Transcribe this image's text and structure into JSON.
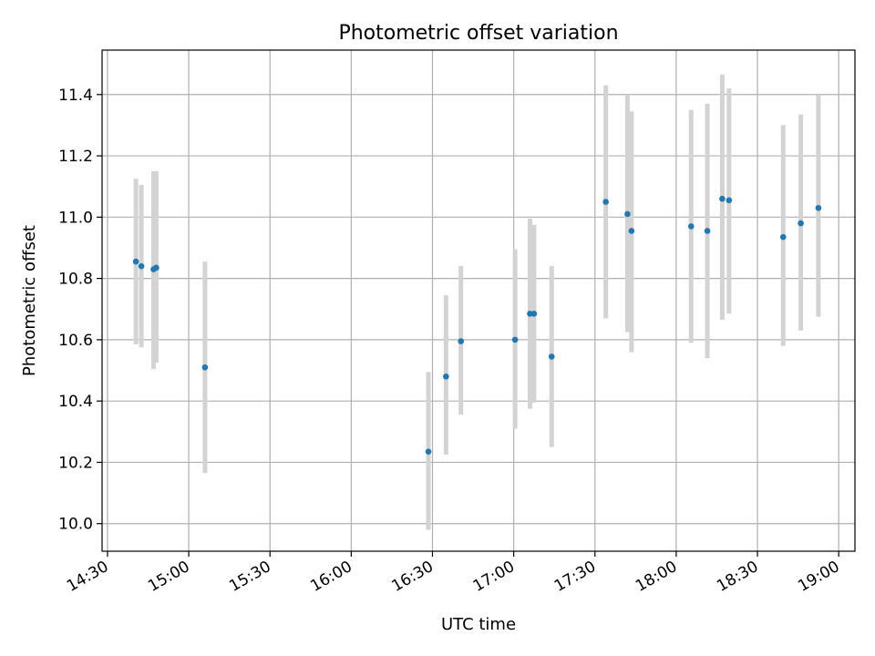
{
  "chart_data": {
    "type": "scatter",
    "title": "Photometric offset variation",
    "xlabel": "UTC time",
    "ylabel": "Photometric offset",
    "x_type": "time",
    "xlim": [
      "14:28",
      "19:06"
    ],
    "ylim": [
      9.91,
      11.545
    ],
    "x_ticks": [
      "14:30",
      "15:00",
      "15:30",
      "16:00",
      "16:30",
      "17:00",
      "17:30",
      "18:00",
      "18:30",
      "19:00"
    ],
    "y_ticks": [
      "10.0",
      "10.2",
      "10.4",
      "10.6",
      "10.8",
      "11.0",
      "11.2",
      "11.4"
    ],
    "grid": true,
    "colors": {
      "marker": "#1f77b4",
      "error_bar": "#d3d3d3",
      "grid": "#b0b0b0",
      "frame": "#000000"
    },
    "series": [
      {
        "points": [
          {
            "x": "14:40:30",
            "y": 10.855,
            "ylo": 10.585,
            "yhi": 11.125
          },
          {
            "x": "14:42:30",
            "y": 10.84,
            "ylo": 10.575,
            "yhi": 11.105
          },
          {
            "x": "14:47:00",
            "y": 10.83,
            "ylo": 10.505,
            "yhi": 11.15
          },
          {
            "x": "14:48:00",
            "y": 10.835,
            "ylo": 10.525,
            "yhi": 11.15
          },
          {
            "x": "15:06:00",
            "y": 10.51,
            "ylo": 10.165,
            "yhi": 10.855
          },
          {
            "x": "16:28:30",
            "y": 10.235,
            "ylo": 9.98,
            "yhi": 10.495
          },
          {
            "x": "16:35:00",
            "y": 10.48,
            "ylo": 10.225,
            "yhi": 10.745
          },
          {
            "x": "16:40:30",
            "y": 10.595,
            "ylo": 10.355,
            "yhi": 10.84
          },
          {
            "x": "17:00:30",
            "y": 10.6,
            "ylo": 10.31,
            "yhi": 10.895
          },
          {
            "x": "17:06:00",
            "y": 10.685,
            "ylo": 10.375,
            "yhi": 10.995
          },
          {
            "x": "17:07:30",
            "y": 10.685,
            "ylo": 10.395,
            "yhi": 10.975
          },
          {
            "x": "17:14:00",
            "y": 10.545,
            "ylo": 10.25,
            "yhi": 10.84
          },
          {
            "x": "17:34:00",
            "y": 11.05,
            "ylo": 10.67,
            "yhi": 11.43
          },
          {
            "x": "17:42:00",
            "y": 11.01,
            "ylo": 10.625,
            "yhi": 11.4
          },
          {
            "x": "17:43:30",
            "y": 10.955,
            "ylo": 10.56,
            "yhi": 11.345
          },
          {
            "x": "18:05:30",
            "y": 10.97,
            "ylo": 10.59,
            "yhi": 11.35
          },
          {
            "x": "18:11:30",
            "y": 10.955,
            "ylo": 10.54,
            "yhi": 11.37
          },
          {
            "x": "18:17:00",
            "y": 11.06,
            "ylo": 10.665,
            "yhi": 11.465
          },
          {
            "x": "18:19:30",
            "y": 11.055,
            "ylo": 10.685,
            "yhi": 11.42
          },
          {
            "x": "18:39:30",
            "y": 10.935,
            "ylo": 10.58,
            "yhi": 11.3
          },
          {
            "x": "18:46:00",
            "y": 10.98,
            "ylo": 10.63,
            "yhi": 11.335
          },
          {
            "x": "18:52:30",
            "y": 11.03,
            "ylo": 10.675,
            "yhi": 11.4
          }
        ]
      }
    ]
  }
}
